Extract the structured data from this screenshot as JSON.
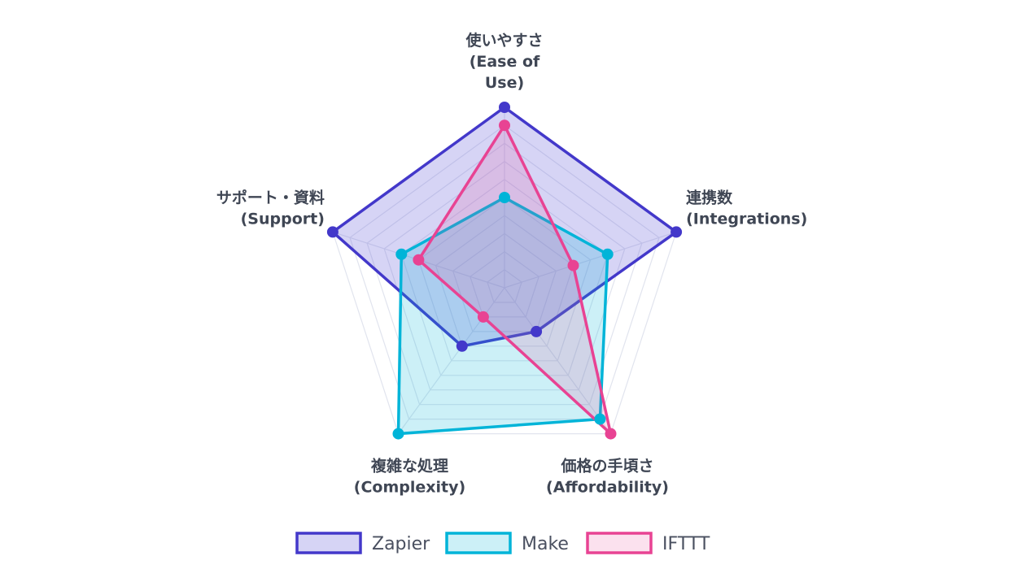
{
  "chart_data": {
    "type": "radar",
    "axes": [
      {
        "label_lines": [
          "使いやすさ",
          "(Ease of",
          "Use)"
        ]
      },
      {
        "label_lines": [
          "連携数",
          "(Integrations)"
        ]
      },
      {
        "label_lines": [
          "価格の手頃さ",
          "(Affordability)"
        ]
      },
      {
        "label_lines": [
          "複雑な処理",
          "(Complexity)"
        ]
      },
      {
        "label_lines": [
          "サポート・資料",
          "(Support)"
        ]
      }
    ],
    "r_range": [
      0,
      10
    ],
    "gridlines": 10,
    "series": [
      {
        "name": "Zapier",
        "values": [
          10,
          10,
          3,
          4,
          10
        ],
        "stroke": "#4338ca",
        "fill": "rgba(108, 99, 220, 0.28)"
      },
      {
        "name": "Make",
        "values": [
          5,
          6,
          9,
          10,
          6
        ],
        "stroke": "#00b4d8",
        "fill": "rgba(0, 180, 216, 0.2)"
      },
      {
        "name": "IFTTT",
        "values": [
          9,
          4,
          10,
          2,
          5
        ],
        "stroke": "#e84393",
        "fill": "rgba(232, 67, 147, 0.16)"
      }
    ],
    "legend_position": "bottom"
  }
}
